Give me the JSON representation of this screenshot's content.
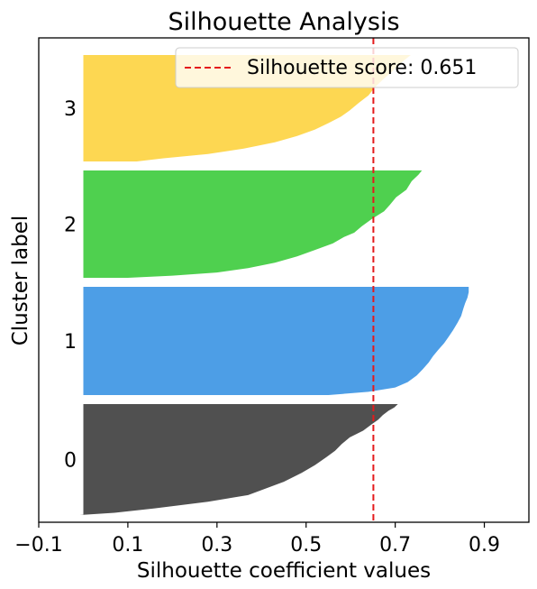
{
  "chart_data": {
    "type": "area",
    "title": "Silhouette Analysis",
    "xlabel": "Silhouette coefficient values",
    "ylabel": "Cluster label",
    "xlim": [
      -0.1,
      1.0
    ],
    "xticks": [
      "−0.1",
      "0.1",
      "0.3",
      "0.5",
      "0.7",
      "0.9"
    ],
    "xtick_values": [
      -0.1,
      0.1,
      0.3,
      0.5,
      0.7,
      0.9
    ],
    "grid": false,
    "legend_position": "top-right",
    "reference_line": {
      "label": "Silhouette score: 0.651",
      "value": 0.651,
      "color": "#e41a1c",
      "style": "dashed"
    },
    "clusters": [
      {
        "label": "0",
        "color": "#3d3d3d",
        "profile": [
          [
            0,
            0.706
          ],
          [
            0.03,
            0.698
          ],
          [
            0.06,
            0.685
          ],
          [
            0.1,
            0.672
          ],
          [
            0.14,
            0.662
          ],
          [
            0.18,
            0.648
          ],
          [
            0.24,
            0.628
          ],
          [
            0.3,
            0.598
          ],
          [
            0.36,
            0.58
          ],
          [
            0.42,
            0.565
          ],
          [
            0.48,
            0.545
          ],
          [
            0.55,
            0.52
          ],
          [
            0.62,
            0.49
          ],
          [
            0.7,
            0.45
          ],
          [
            0.76,
            0.41
          ],
          [
            0.82,
            0.37
          ],
          [
            0.88,
            0.28
          ],
          [
            0.94,
            0.16
          ],
          [
            0.98,
            0.07
          ],
          [
            1,
            -0.008
          ]
        ]
      },
      {
        "label": "1",
        "color": "#3a93e3",
        "profile": [
          [
            0,
            0.865
          ],
          [
            0.05,
            0.865
          ],
          [
            0.1,
            0.862
          ],
          [
            0.15,
            0.857
          ],
          [
            0.2,
            0.853
          ],
          [
            0.27,
            0.848
          ],
          [
            0.33,
            0.84
          ],
          [
            0.4,
            0.83
          ],
          [
            0.46,
            0.82
          ],
          [
            0.52,
            0.81
          ],
          [
            0.58,
            0.797
          ],
          [
            0.64,
            0.785
          ],
          [
            0.7,
            0.775
          ],
          [
            0.76,
            0.762
          ],
          [
            0.82,
            0.748
          ],
          [
            0.88,
            0.728
          ],
          [
            0.93,
            0.7
          ],
          [
            0.97,
            0.64
          ],
          [
            1,
            0.55
          ]
        ]
      },
      {
        "label": "2",
        "color": "#3ccb3c",
        "profile": [
          [
            0,
            0.76
          ],
          [
            0.04,
            0.752
          ],
          [
            0.1,
            0.737
          ],
          [
            0.18,
            0.725
          ],
          [
            0.25,
            0.702
          ],
          [
            0.32,
            0.688
          ],
          [
            0.38,
            0.675
          ],
          [
            0.45,
            0.648
          ],
          [
            0.52,
            0.625
          ],
          [
            0.58,
            0.608
          ],
          [
            0.62,
            0.585
          ],
          [
            0.68,
            0.56
          ],
          [
            0.74,
            0.52
          ],
          [
            0.8,
            0.48
          ],
          [
            0.86,
            0.43
          ],
          [
            0.91,
            0.37
          ],
          [
            0.95,
            0.3
          ],
          [
            0.98,
            0.2
          ],
          [
            1,
            0.1
          ]
        ]
      },
      {
        "label": "3",
        "color": "#fdd33f",
        "profile": [
          [
            0,
            0.735
          ],
          [
            0.05,
            0.72
          ],
          [
            0.1,
            0.705
          ],
          [
            0.16,
            0.692
          ],
          [
            0.22,
            0.675
          ],
          [
            0.3,
            0.655
          ],
          [
            0.38,
            0.64
          ],
          [
            0.45,
            0.618
          ],
          [
            0.52,
            0.598
          ],
          [
            0.58,
            0.578
          ],
          [
            0.64,
            0.55
          ],
          [
            0.7,
            0.52
          ],
          [
            0.76,
            0.48
          ],
          [
            0.82,
            0.43
          ],
          [
            0.88,
            0.36
          ],
          [
            0.93,
            0.28
          ],
          [
            0.97,
            0.18
          ],
          [
            1,
            0.12
          ]
        ]
      }
    ]
  }
}
